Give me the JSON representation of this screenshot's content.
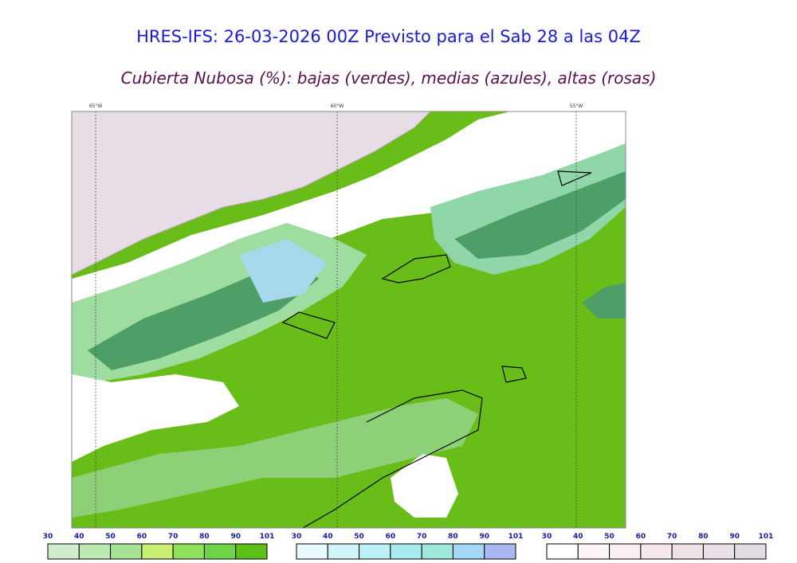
{
  "header": {
    "title": "HRES-IFS: 26-03-2026 00Z Previsto para el Sab 28 a las 04Z",
    "subtitle": "Cubierta Nubosa (%): bajas (verdes), medias (azules), altas (rosas)"
  },
  "map": {
    "lon_labels": [
      "65°W",
      "60°W",
      "55°W"
    ]
  },
  "legends": [
    {
      "ticks": [
        "30",
        "40",
        "50",
        "60",
        "70",
        "80",
        "90",
        "101"
      ],
      "colors": [
        "#cfeccc",
        "#bbebb2",
        "#a3e391",
        "#c8ee72",
        "#8fe05a",
        "#6fd44a",
        "#5cbf16"
      ]
    },
    {
      "ticks": [
        "30",
        "40",
        "50",
        "60",
        "70",
        "80",
        "90",
        "101"
      ],
      "colors": [
        "#e8fafc",
        "#d2f5fa",
        "#baf0f6",
        "#a8ecf0",
        "#9ee8dc",
        "#a3d8f8",
        "#a9b8f0"
      ]
    },
    {
      "ticks": [
        "30",
        "40",
        "50",
        "60",
        "70",
        "80",
        "90",
        "101"
      ],
      "colors": [
        "#ffffff",
        "#fdf5f8",
        "#fbeef3",
        "#f7e7ee",
        "#efe2e8",
        "#ebe0e8",
        "#e3dbe4"
      ]
    }
  ]
}
